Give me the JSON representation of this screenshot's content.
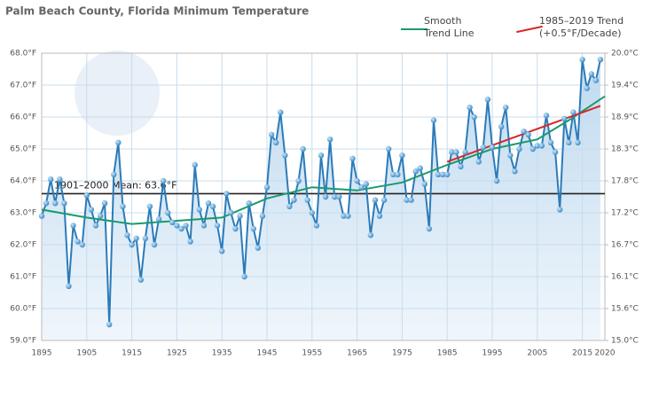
{
  "chart_data": {
    "type": "line",
    "title": "Palm Beach County, Florida Minimum Temperature",
    "x": [
      1895,
      1896,
      1897,
      1898,
      1899,
      1900,
      1901,
      1902,
      1903,
      1904,
      1905,
      1906,
      1907,
      1908,
      1909,
      1910,
      1911,
      1912,
      1913,
      1914,
      1915,
      1916,
      1917,
      1918,
      1919,
      1920,
      1921,
      1922,
      1923,
      1924,
      1925,
      1926,
      1927,
      1928,
      1929,
      1930,
      1931,
      1932,
      1933,
      1934,
      1935,
      1936,
      1937,
      1938,
      1939,
      1940,
      1941,
      1942,
      1943,
      1944,
      1945,
      1946,
      1947,
      1948,
      1949,
      1950,
      1951,
      1952,
      1953,
      1954,
      1955,
      1956,
      1957,
      1958,
      1959,
      1960,
      1961,
      1962,
      1963,
      1964,
      1965,
      1966,
      1967,
      1968,
      1969,
      1970,
      1971,
      1972,
      1973,
      1974,
      1975,
      1976,
      1977,
      1978,
      1979,
      1980,
      1981,
      1982,
      1983,
      1984,
      1985,
      1986,
      1987,
      1988,
      1989,
      1990,
      1991,
      1992,
      1993,
      1994,
      1995,
      1996,
      1997,
      1998,
      1999,
      2000,
      2001,
      2002,
      2003,
      2004,
      2005,
      2006,
      2007,
      2008,
      2009,
      2010,
      2011,
      2012,
      2013,
      2014,
      2015,
      2016,
      2017,
      2018,
      2019
    ],
    "values": [
      62.9,
      63.3,
      64.05,
      63.3,
      64.05,
      63.3,
      60.7,
      62.6,
      62.1,
      62.0,
      63.55,
      63.1,
      62.6,
      62.9,
      63.3,
      59.5,
      64.2,
      65.2,
      63.2,
      62.3,
      62.0,
      62.2,
      60.9,
      62.2,
      63.2,
      62.0,
      62.8,
      64.0,
      63.0,
      62.7,
      62.6,
      62.5,
      62.6,
      62.1,
      64.5,
      63.1,
      62.6,
      63.3,
      63.2,
      62.6,
      61.8,
      63.6,
      63.0,
      62.5,
      62.9,
      61.0,
      63.3,
      62.5,
      61.9,
      62.9,
      63.8,
      65.45,
      65.2,
      66.15,
      64.8,
      63.2,
      63.4,
      64.0,
      65.0,
      63.4,
      63.0,
      62.6,
      64.8,
      63.5,
      65.3,
      63.5,
      63.5,
      62.9,
      62.9,
      64.7,
      64.0,
      63.8,
      63.9,
      62.3,
      63.4,
      62.9,
      63.4,
      65.0,
      64.2,
      64.2,
      64.8,
      63.4,
      63.4,
      64.3,
      64.4,
      63.9,
      62.5,
      65.9,
      64.2,
      64.2,
      64.2,
      64.9,
      64.9,
      64.45,
      64.9,
      66.3,
      66.0,
      64.6,
      65.05,
      66.55,
      65.05,
      64.0,
      65.7,
      66.3,
      64.8,
      64.3,
      65.0,
      65.55,
      65.45,
      65.0,
      65.1,
      65.1,
      66.05,
      65.2,
      64.9,
      63.1,
      65.95,
      65.2,
      66.15,
      65.2,
      67.8,
      66.9,
      67.35,
      67.15,
      67.8
    ],
    "color": "#2b7bb9",
    "trends": [
      {
        "name": "Smooth\nTrend Line",
        "color": "#1a9a6c",
        "x": [
          1895,
          1905,
          1915,
          1925,
          1935,
          1945,
          1955,
          1965,
          1975,
          1985,
          1995,
          2005,
          2012,
          2020
        ],
        "values": [
          63.1,
          62.85,
          62.65,
          62.75,
          62.85,
          63.45,
          63.8,
          63.7,
          63.95,
          64.5,
          65.0,
          65.3,
          65.9,
          66.65
        ]
      },
      {
        "name": "1985–2019 Trend\n(+0.5°F/Decade)",
        "color": "#d62728",
        "x": [
          1985,
          2019
        ],
        "values": [
          64.6,
          66.35
        ]
      }
    ],
    "mean": {
      "value": 63.6,
      "label": "1901–2000 Mean: 63.6°F"
    },
    "xlim": [
      1895,
      2020
    ],
    "xticks": [
      1895,
      1905,
      1915,
      1925,
      1935,
      1945,
      1955,
      1965,
      1975,
      1985,
      1995,
      2005,
      2015,
      2020
    ],
    "ylim": [
      59,
      68
    ],
    "yticks": [
      {
        "value": 59,
        "label": "59.0°F"
      },
      {
        "value": 60,
        "label": "60.0°F"
      },
      {
        "value": 61,
        "label": "61.0°F"
      },
      {
        "value": 62,
        "label": "62.0°F"
      },
      {
        "value": 63,
        "label": "63.0°F"
      },
      {
        "value": 64,
        "label": "64.0°F"
      },
      {
        "value": 65,
        "label": "65.0°F"
      },
      {
        "value": 66,
        "label": "66.0°F"
      },
      {
        "value": 67,
        "label": "67.0°F"
      },
      {
        "value": 68,
        "label": "68.0°F"
      }
    ],
    "y2lim": [
      15,
      20
    ],
    "y2ticks": [
      {
        "value": 15,
        "label": "15.0°C"
      },
      {
        "value": 15.556,
        "label": "15.6°C"
      },
      {
        "value": 16.111,
        "label": "16.1°C"
      },
      {
        "value": 16.667,
        "label": "16.7°C"
      },
      {
        "value": 17.222,
        "label": "17.2°C"
      },
      {
        "value": 17.778,
        "label": "17.8°C"
      },
      {
        "value": 18.333,
        "label": "18.3°C"
      },
      {
        "value": 18.889,
        "label": "18.9°C"
      },
      {
        "value": 19.444,
        "label": "19.4°C"
      },
      {
        "value": 20,
        "label": "20.0°C"
      }
    ],
    "grid": true
  }
}
